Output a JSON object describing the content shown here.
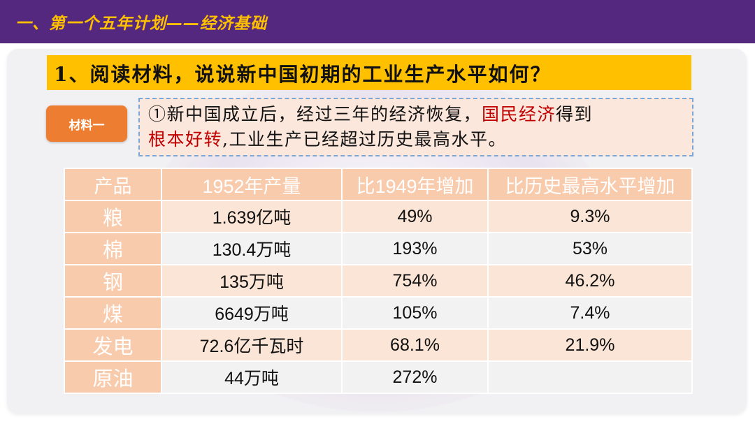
{
  "header": {
    "title": "一、第一个五年计划——经济基础"
  },
  "question": {
    "text": "1、阅读材料，说说新中国初期的工业生产水平如何？"
  },
  "material": {
    "badge": "材料一",
    "part1": "①新中国成立后，经过三年的经济恢复，",
    "highlight1": "国民经济",
    "part2": "得到",
    "highlight2": "根本好转",
    "part3": ",工业生产已经超过历史最高水平。"
  },
  "table": {
    "headers": [
      "产品",
      "1952年产量",
      "比1949年增加",
      "比历史最高水平增加"
    ],
    "rows": [
      [
        "粮",
        "1.639亿吨",
        "49%",
        "9.3%"
      ],
      [
        "棉",
        "130.4万吨",
        "193%",
        "53%"
      ],
      [
        "钢",
        "135万吨",
        "754%",
        "46.2%"
      ],
      [
        "煤",
        "6649万吨",
        "105%",
        "7.4%"
      ],
      [
        "发电",
        "72.6亿千瓦时",
        "68.1%",
        "21.9%"
      ],
      [
        "原油",
        "44万吨",
        "272%",
        ""
      ]
    ]
  }
}
